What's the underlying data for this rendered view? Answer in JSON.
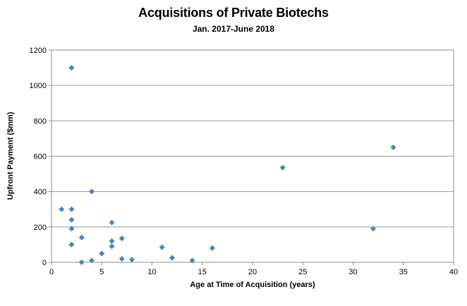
{
  "chart_data": {
    "type": "scatter",
    "title": "Acquisitions of Private Biotechs",
    "subtitle": "Jan. 2017-June 2018",
    "xlabel": "Age at Time of Acquisition (years)",
    "ylabel": "Upfront Payment ($mm)",
    "xlim": [
      0,
      40
    ],
    "ylim": [
      0,
      1200
    ],
    "xticks": [
      0,
      5,
      10,
      15,
      20,
      25,
      30,
      35,
      40
    ],
    "yticks": [
      0,
      200,
      400,
      600,
      800,
      1000,
      1200
    ],
    "grid": "horizontal",
    "legend": "none",
    "marker": "diamond",
    "marker_color": "#4F81BD",
    "gridline_color": "#9B9B9B",
    "axis_color": "#8C8C8C",
    "points": [
      {
        "x": 1,
        "y": 300
      },
      {
        "x": 2,
        "y": 1100
      },
      {
        "x": 2,
        "y": 300
      },
      {
        "x": 2,
        "y": 240
      },
      {
        "x": 2,
        "y": 190
      },
      {
        "x": 2,
        "y": 100
      },
      {
        "x": 3,
        "y": 140
      },
      {
        "x": 3,
        "y": 0
      },
      {
        "x": 4,
        "y": 400
      },
      {
        "x": 4,
        "y": 10
      },
      {
        "x": 5,
        "y": 50
      },
      {
        "x": 6,
        "y": 225
      },
      {
        "x": 6,
        "y": 120
      },
      {
        "x": 6,
        "y": 90
      },
      {
        "x": 7,
        "y": 135
      },
      {
        "x": 7,
        "y": 20
      },
      {
        "x": 8,
        "y": 15
      },
      {
        "x": 11,
        "y": 85
      },
      {
        "x": 12,
        "y": 25
      },
      {
        "x": 14,
        "y": 10
      },
      {
        "x": 16,
        "y": 80
      },
      {
        "x": 23,
        "y": 535
      },
      {
        "x": 32,
        "y": 190
      },
      {
        "x": 34,
        "y": 650
      }
    ]
  }
}
